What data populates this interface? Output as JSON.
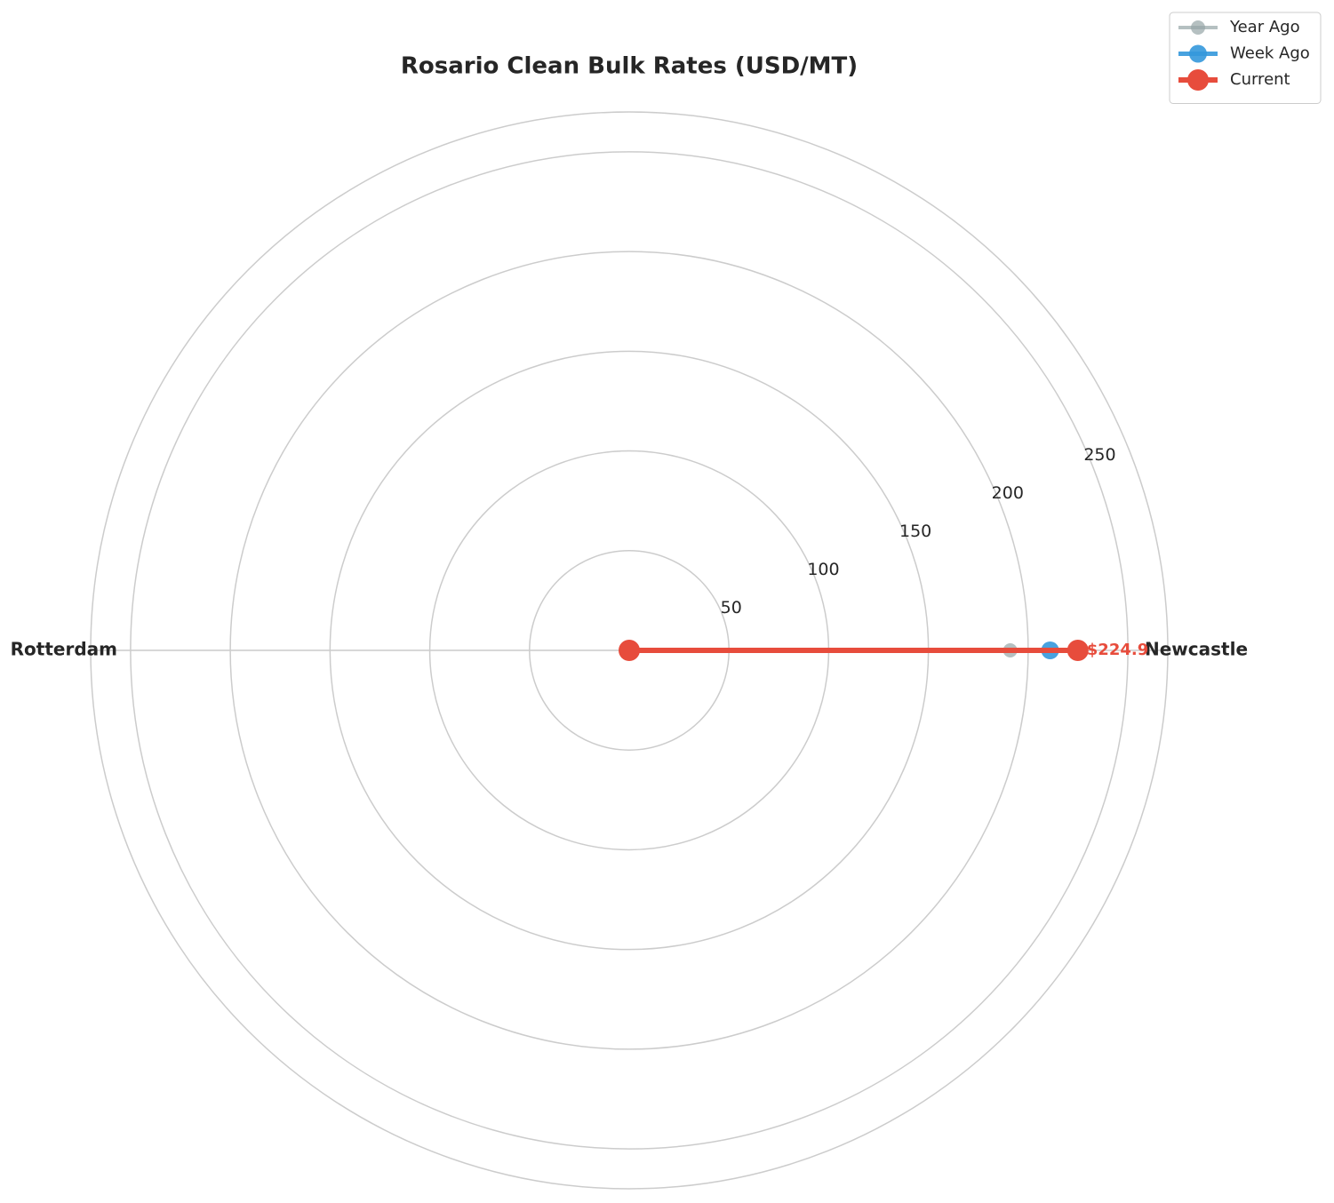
{
  "chart_data": {
    "type": "radar",
    "title": "Rosario Clean Bulk Rates (USD/MT)",
    "categories": [
      "Newcastle",
      "Rotterdam"
    ],
    "series": [
      {
        "name": "Year Ago",
        "color": "#95a5a6",
        "values": [
          191,
          0
        ]
      },
      {
        "name": "Week Ago",
        "color": "#3498db",
        "values": [
          211,
          0
        ]
      },
      {
        "name": "Current",
        "color": "#e74c3c",
        "values": [
          224.9,
          0
        ],
        "value_labels": [
          "$224.9",
          null
        ]
      }
    ],
    "ylim": [
      0,
      270
    ],
    "yticks": [
      50,
      100,
      150,
      200,
      250
    ],
    "grid": true,
    "legend": "upper right"
  }
}
